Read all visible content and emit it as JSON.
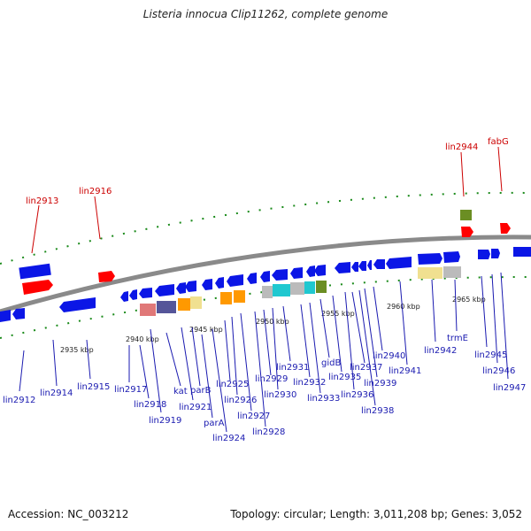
{
  "title": "Listeria innocua Clip11262, complete genome",
  "footer": {
    "accession": "Accession: NC_003212",
    "topology": "Topology: circular; Length: 3,011,208 bp; Genes: 3,052"
  },
  "colors": {
    "backbone": "#8a8a8a",
    "forward_gene": "#0b16e6",
    "reverse_gene": "#0b16e6",
    "rna_gene": "#ff0000",
    "dots": "#1a8a1a",
    "label_blue": "#1a1ab0",
    "label_red": "#cc0000"
  },
  "ticks": [
    "2935 kbp",
    "2940 kbp",
    "2945 kbp",
    "2950 kbp",
    "2955 kbp",
    "2960 kbp",
    "2965 kbp"
  ],
  "labels_top": [
    "lin2913",
    "lin2916",
    "lin2944",
    "fabG"
  ],
  "labels_bottom": [
    "lin2912",
    "lin2914",
    "lin2915",
    "lin2917",
    "lin2918",
    "lin2919",
    "kat",
    "lin2921",
    "parB",
    "parA",
    "lin2924",
    "lin2925",
    "lin2926",
    "lin2927",
    "lin2928",
    "lin2929",
    "lin2930",
    "lin2931",
    "lin2932",
    "lin2933",
    "gidB",
    "lin2935",
    "lin2936",
    "lin2937",
    "lin2938",
    "lin2939",
    "lin2940",
    "lin2941",
    "lin2942",
    "trmE",
    "lin2945",
    "lin2946",
    "lin2947"
  ]
}
